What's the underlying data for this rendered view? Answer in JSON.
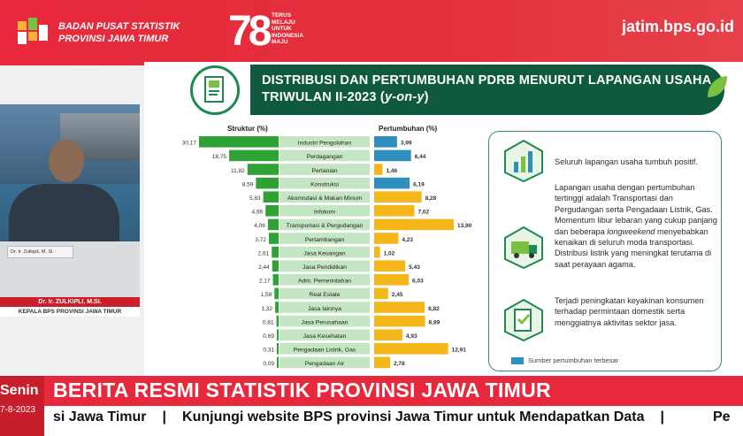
{
  "broadcast": {
    "org_line1": "BADAN PUSAT STATISTIK",
    "org_line2": "PROVINSI JAWA TIMUR",
    "anniv_text": [
      "TERUS",
      "MELAJU",
      "UNTUK",
      "INDONESIA",
      "MAJU"
    ],
    "anniv_number": "78",
    "url": "jatim.bps.go.id",
    "speaker_plate": "Dr. Ir. Zulkipli, M. Si.",
    "speaker_name": "Dr. Ir. ZULKIPLI, M.SI.",
    "speaker_role": "KEPALA BPS PROVINSI JAWA TIMUR",
    "day": "Senin",
    "date": "7-8-2023",
    "headline": "BERITA RESMI STATISTIK PROVINSI JAWA TIMUR",
    "ticker_left": "si Jawa Timur",
    "ticker_main": "Kunjungi website BPS provinsi Jawa Timur untuk Mendapatkan Data",
    "ticker_right": "Pe",
    "separator": "|"
  },
  "slide": {
    "title_line1": "DISTRIBUSI DAN PERTUMBUHAN PDRB MENURUT LAPANGAN USAHA",
    "title_line2_plain": "TRIWULAN II-2023 (",
    "title_line2_em": "y-on-y",
    "title_line2_close": ")",
    "col_struktur": "Struktur (%)",
    "col_pertumbuhan": "Pertumbuhan (%)",
    "info": {
      "p1": "Seluruh lapangan usaha tumbuh positif.",
      "p2a": "Lapangan usaha dengan pertumbuhan tertinggi adalah Transportasi dan Pergudangan serta Pengadaan Listrik, Gas. Momentum libur lebaran yang cukup panjang dan beberapa ",
      "p2em": "longweekend",
      "p2b": " menyebabkan kenaikan di seluruh moda transportasi. Distribusi listrik yang meningkat terutama di saat perayaan agama.",
      "p3": "Terjadi peningkatan keyakinan konsumen terhadap permintaan domestik serta menggiatnya aktivitas sektor jasa.",
      "legend": "Sumber pertumbuhan terbesar"
    }
  },
  "colors": {
    "red": "#e8283c",
    "dark_green": "#0f5a3c",
    "struktur_bar": "#2fa235",
    "growth_bar": "#f4b619",
    "growth_top_bar": "#2e8ebc",
    "label_band": "#c5e6c2"
  },
  "chart_data": {
    "type": "bar",
    "categories": [
      "Industri Pengolahan",
      "Perdagangan",
      "Pertanian",
      "Konstruksi",
      "Akomodasi & Makan Minum",
      "Infokom",
      "Transportasi & Pergudangan",
      "Pertambangan",
      "Jasa Keuangan",
      "Jasa Pendidikan",
      "Adm. Pemerintahan",
      "Real Estate",
      "Jasa lainnya",
      "Jasa Perusahaan",
      "Jasa Kesehatan",
      "Pengadaan Listrik, Gas",
      "Pengadaan Air"
    ],
    "series": [
      {
        "name": "Struktur (%)",
        "values": [
          30.17,
          18.75,
          11.82,
          8.59,
          5.83,
          4.96,
          4.06,
          3.72,
          2.61,
          2.44,
          2.17,
          1.58,
          1.32,
          0.81,
          0.69,
          0.31,
          0.09
        ]
      },
      {
        "name": "Pertumbuhan (%)",
        "values": [
          3.99,
          6.44,
          1.46,
          6.19,
          8.28,
          7.02,
          13.9,
          4.23,
          1.02,
          5.43,
          6.03,
          2.45,
          8.82,
          8.89,
          4.93,
          12.91,
          2.78
        ]
      }
    ],
    "value_labels_struktur": [
      "30,17",
      "18,75",
      "11,82",
      "8,59",
      "5,83",
      "4,96",
      "4,06",
      "3,72",
      "2,61",
      "2,44",
      "2,17",
      "1,58",
      "1,32",
      "0,81",
      "0,69",
      "0,31",
      "0,09"
    ],
    "value_labels_growth": [
      "3,99",
      "6,44",
      "1,46",
      "6,19",
      "8,28",
      "7,02",
      "13,90",
      "4,23",
      "1,02",
      "5,43",
      "6,03",
      "2,45",
      "8,82",
      "8,89",
      "4,93",
      "12,91",
      "2,78"
    ],
    "highlight_growth": [
      0,
      1,
      3
    ]
  }
}
